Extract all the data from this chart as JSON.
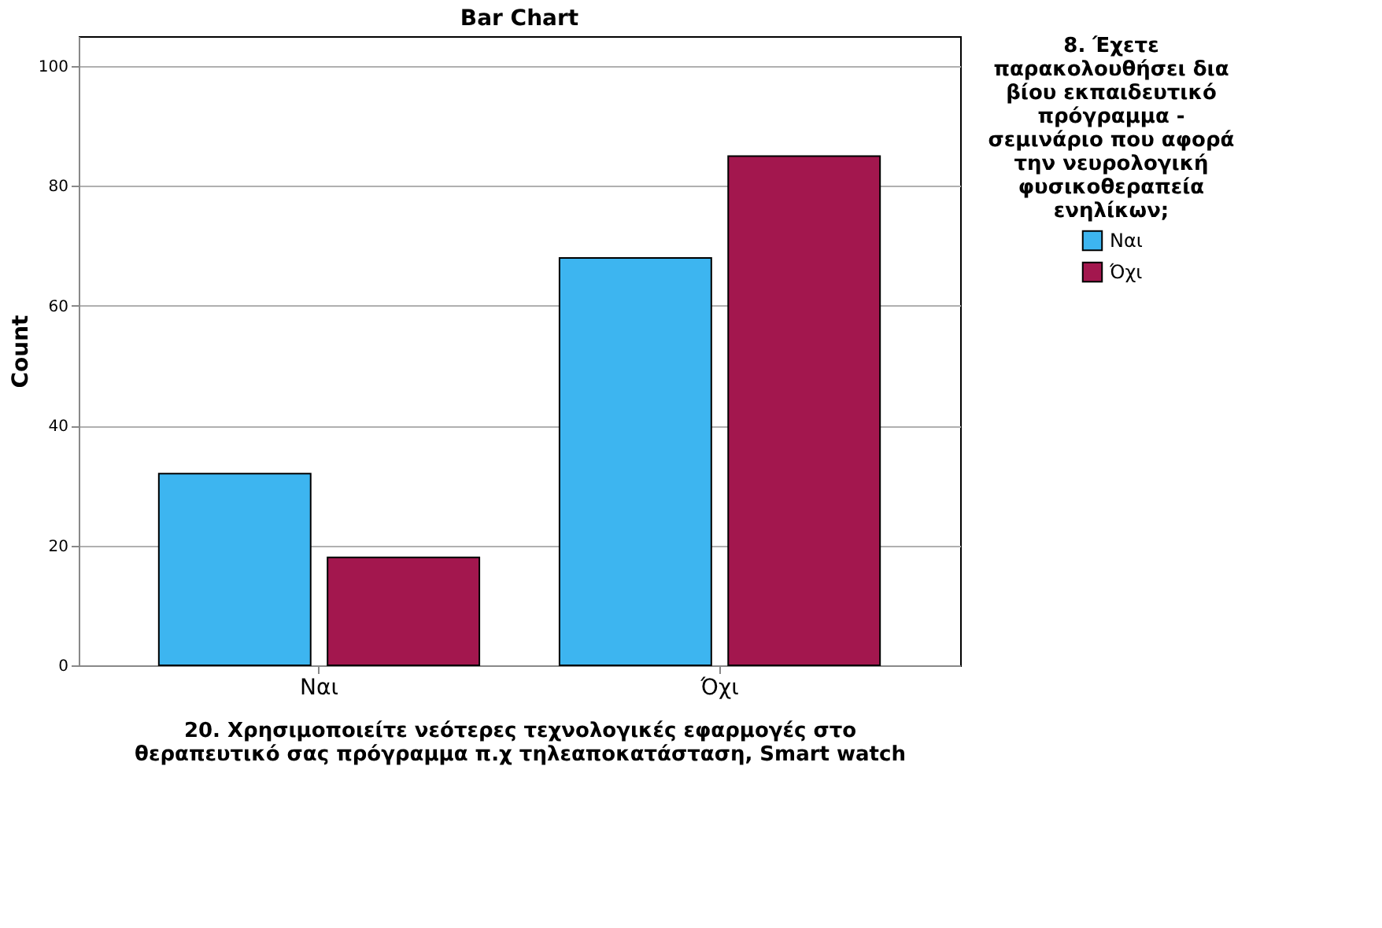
{
  "chart_data": {
    "type": "bar",
    "title": "Bar Chart",
    "xlabel": "20. Χρησιμοποιείτε νεότερες τεχνολογικές εφαρμογές στο θεραπευτικό σας πρόγραμμα π.χ τηλεαποκατάσταση, Smart watch",
    "ylabel": "Count",
    "legend_title": "8. Έχετε παρακολουθήσει δια βίου εκπαιδευτικό πρόγραμμα - σεμινάριο που αφορά την νευρολογική φυσικοθεραπεία ενηλίκων;",
    "categories": [
      "Ναι",
      "Όχι"
    ],
    "series": [
      {
        "name": "Ναι",
        "color": "#3db5f0",
        "values": [
          32,
          68
        ]
      },
      {
        "name": "Όχι",
        "color": "#a3174e",
        "values": [
          18,
          85
        ]
      }
    ],
    "ylim": [
      0,
      105
    ],
    "yticks": [
      0,
      20,
      40,
      60,
      80,
      100
    ],
    "grid": "y",
    "legend": "right"
  }
}
